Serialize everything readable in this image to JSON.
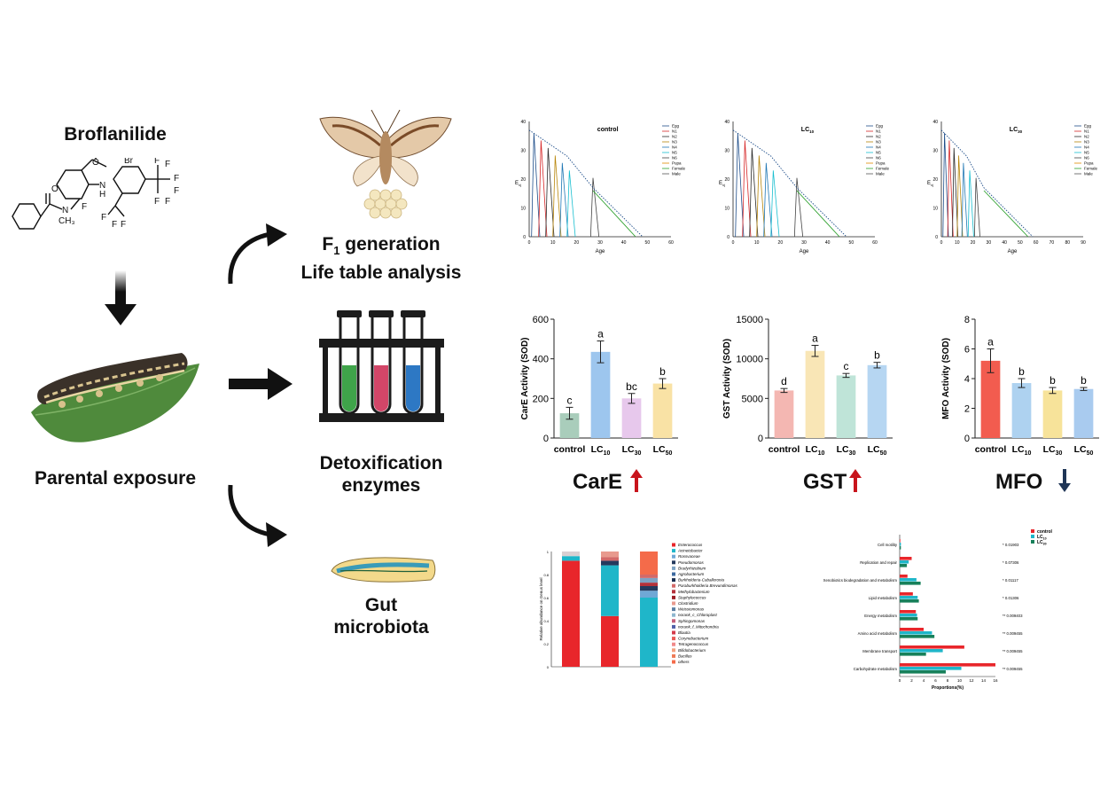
{
  "left": {
    "compound": "Broflanilide",
    "exposure": "Parental exposure"
  },
  "middle": {
    "f1": {
      "line1_prefix": "F",
      "line1_sub": "1",
      "line1_suffix": " generation",
      "line2": "Life table analysis"
    },
    "detox": {
      "line1": "Detoxification",
      "line2": "enzymes"
    },
    "gut": {
      "line1": "Gut",
      "line2": "microbiota"
    }
  },
  "enzyme_names": {
    "care": "CarE",
    "gst": "GST",
    "mfo": "MFO"
  },
  "colors": {
    "up_arrow": "#c8141c",
    "down_arrow": "#1f3556"
  },
  "life_table": {
    "ylabel": "E",
    "ylabel_sub": "xj",
    "xlabel": "Age",
    "panels": [
      {
        "title": "control",
        "sub": ""
      },
      {
        "title": "LC",
        "sub": "10"
      },
      {
        "title": "LC",
        "sub": "30"
      }
    ],
    "legend": [
      "Egg",
      "N1",
      "N2",
      "N3",
      "N4",
      "N5",
      "N6",
      "Pupa",
      "Female",
      "Male"
    ],
    "xticks": [
      0,
      10,
      20,
      30,
      40,
      50,
      60
    ],
    "xticks3": [
      0,
      10,
      20,
      30,
      40,
      50,
      60,
      70,
      80,
      90
    ],
    "yticks": [
      0,
      10,
      20,
      30,
      40
    ]
  },
  "chart_data": [
    {
      "type": "bar",
      "title": "",
      "ylabel": "CarE Activity (SOD)",
      "xlabel": "",
      "categories": [
        {
          "main": "control",
          "sub": ""
        },
        {
          "main": "LC",
          "sub": "10"
        },
        {
          "main": "LC",
          "sub": "30"
        },
        {
          "main": "LC",
          "sub": "50"
        }
      ],
      "values": [
        125,
        435,
        200,
        275
      ],
      "errors": [
        30,
        55,
        25,
        25
      ],
      "letters": [
        "c",
        "a",
        "bc",
        "b"
      ],
      "ylim": [
        0,
        600
      ],
      "yticks": [
        0,
        200,
        400,
        600
      ],
      "colors": [
        "#a9cdbb",
        "#9dc6ee",
        "#e7c8ec",
        "#f9e2a5"
      ]
    },
    {
      "type": "bar",
      "title": "",
      "ylabel": "GST Activity (SOD)",
      "xlabel": "",
      "categories": [
        {
          "main": "control",
          "sub": ""
        },
        {
          "main": "LC",
          "sub": "10"
        },
        {
          "main": "LC",
          "sub": "30"
        },
        {
          "main": "LC",
          "sub": "50"
        }
      ],
      "values": [
        6000,
        11000,
        7900,
        9200
      ],
      "errors": [
        250,
        700,
        250,
        350
      ],
      "letters": [
        "d",
        "a",
        "c",
        "b"
      ],
      "ylim": [
        0,
        15000
      ],
      "yticks": [
        0,
        5000,
        10000,
        15000
      ],
      "colors": [
        "#f4b7b2",
        "#f9e6b6",
        "#bfe4d8",
        "#b6d6f2"
      ]
    },
    {
      "type": "bar",
      "title": "",
      "ylabel": "MFO Activity (SOD)",
      "xlabel": "",
      "categories": [
        {
          "main": "control",
          "sub": ""
        },
        {
          "main": "LC",
          "sub": "10"
        },
        {
          "main": "LC",
          "sub": "30"
        },
        {
          "main": "LC",
          "sub": "50"
        }
      ],
      "values": [
        5.2,
        3.7,
        3.2,
        3.3
      ],
      "errors": [
        0.8,
        0.3,
        0.2,
        0.1
      ],
      "letters": [
        "a",
        "b",
        "b",
        "b"
      ],
      "ylim": [
        0,
        8
      ],
      "yticks": [
        0,
        2,
        4,
        6,
        8
      ],
      "colors": [
        "#f25c4f",
        "#aed2f0",
        "#f7e39a",
        "#a9cbef"
      ]
    },
    {
      "type": "bar",
      "stacked": true,
      "ylabel": "Relative abundance on Genus level",
      "categories": [
        "",
        "",
        ""
      ],
      "yticks": [
        0,
        0.2,
        0.4,
        0.6,
        0.8,
        1
      ],
      "legend": [
        "Enterococcus",
        "Acinetobacter",
        "Rossvaceae",
        "Pseudomonas",
        "Bradyrhizobium",
        "Agrobacterium",
        "Burkholderia-Caballeronia",
        "Paraburkholderia Brevundimonas",
        "Methylobacterium",
        "Staphylococcus",
        "Clostridium",
        "Weissiomonas",
        "norank_c_Chloroplast",
        "Sphingomonas",
        "norank_f_Mitochondria",
        "Blautia",
        "Corynebacterium",
        "Tetragenococcus",
        "Bifidobacterium",
        "Bacillus",
        "others"
      ],
      "legend_colors": [
        "#e8262b",
        "#1fb6c9",
        "#6fa8d6",
        "#243a5e",
        "#7ea3c4",
        "#3c6aa0",
        "#1a2f50",
        "#d26a6a",
        "#b4313b",
        "#9b1d25",
        "#e89a8e",
        "#5b7fa3",
        "#8fb7cf",
        "#c45e7a",
        "#4f5fa8",
        "#d43a4a",
        "#e85a56",
        "#f0898a",
        "#f3a07e",
        "#ee7a56",
        "#f46b4a"
      ],
      "stacks": [
        [
          {
            "value": 0.92,
            "color": "#e8262b"
          },
          {
            "value": 0.04,
            "color": "#1fb6c9"
          },
          {
            "value": 0.04,
            "color": "#d9cfd2"
          }
        ],
        [
          {
            "value": 0.44,
            "color": "#e8262b"
          },
          {
            "value": 0.44,
            "color": "#1fb6c9"
          },
          {
            "value": 0.04,
            "color": "#243a5e"
          },
          {
            "value": 0.03,
            "color": "#d26a6a"
          },
          {
            "value": 0.05,
            "color": "#e89a8e"
          }
        ],
        [
          {
            "value": 0.6,
            "color": "#1fb6c9"
          },
          {
            "value": 0.06,
            "color": "#6fa8d6"
          },
          {
            "value": 0.04,
            "color": "#243a5e"
          },
          {
            "value": 0.03,
            "color": "#b4313b"
          },
          {
            "value": 0.04,
            "color": "#7ea3c4"
          },
          {
            "value": 0.03,
            "color": "#d26a6a"
          },
          {
            "value": 0.2,
            "color": "#f46b4a"
          }
        ]
      ]
    },
    {
      "type": "bar",
      "orientation": "horizontal",
      "xlabel": "Proportions(%)",
      "legend": [
        {
          "name": "control",
          "sub": "",
          "color": "#e8262b"
        },
        {
          "name": "LC",
          "sub": "10",
          "color": "#1fb6c9"
        },
        {
          "name": "LC",
          "sub": "30",
          "color": "#17805a"
        }
      ],
      "categories": [
        "Cell motility",
        "Replication and repair",
        "Xenobiotics biodegradation and metabolism",
        "Lipid metabolism",
        "Energy metabolism",
        "Amino acid metabolism",
        "Membrane transport",
        "Carbohydrate metabolism"
      ],
      "series_values": [
        [
          0.1,
          0.2,
          0.2
        ],
        [
          2.0,
          1.5,
          1.2
        ],
        [
          1.3,
          2.8,
          3.5
        ],
        [
          2.2,
          3.0,
          3.2
        ],
        [
          2.7,
          2.9,
          3.0
        ],
        [
          4.0,
          5.4,
          5.8
        ],
        [
          10.8,
          7.2,
          4.4
        ],
        [
          16.0,
          10.3,
          7.7
        ]
      ],
      "significance": [
        "* 0.01903",
        "* 0.07306",
        "* 0.01117",
        "* 0.01306",
        "** 0.009403",
        "** 0.009455",
        "** 0.009455",
        "** 0.009455"
      ],
      "xlim": [
        0,
        16
      ],
      "xticks": [
        0,
        2,
        4,
        6,
        8,
        10,
        12,
        14,
        16
      ]
    }
  ]
}
